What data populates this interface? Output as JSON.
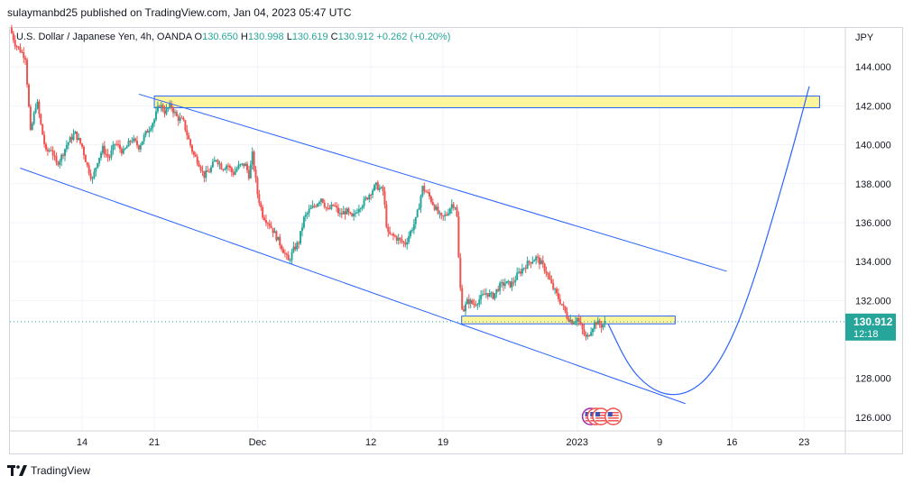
{
  "header": {
    "publisher_line": "sulaymanbd25 published on TradingView.com, Jan 04, 2023 05:47 UTC"
  },
  "legend": {
    "symbol": "U.S. Dollar / Japanese Yen, 4h, OANDA",
    "open_label": "O",
    "open": "130.650",
    "high_label": "H",
    "high": "130.998",
    "low_label": "L",
    "low": "130.619",
    "close_label": "C",
    "close": "130.912",
    "change": "+0.262 (+0.20%)"
  },
  "footer": {
    "brand": "TradingView"
  },
  "colors": {
    "up": "#26a69a",
    "down": "#ef5350",
    "channel": "#2962ff",
    "zone_fill": "#fff59d",
    "price_tag": "#26a69a"
  },
  "chart_data": {
    "type": "candlestick",
    "currency": "JPY",
    "y_range": [
      125.3,
      146.0
    ],
    "y_ticks": [
      "144.000",
      "142.000",
      "140.000",
      "138.000",
      "136.000",
      "134.000",
      "132.000",
      "128.000",
      "126.000"
    ],
    "x_ticks": [
      {
        "label": "14",
        "t": 7
      },
      {
        "label": "21",
        "t": 14
      },
      {
        "label": "Dec",
        "t": 24
      },
      {
        "label": "12",
        "t": 35
      },
      {
        "label": "19",
        "t": 42
      },
      {
        "label": "2023",
        "t": 55
      },
      {
        "label": "9",
        "t": 63
      },
      {
        "label": "16",
        "t": 70
      },
      {
        "label": "23",
        "t": 77
      }
    ],
    "last_price": "130.912",
    "countdown": "12:18",
    "price_path": [
      {
        "t": 0.0,
        "p": 146.0
      },
      {
        "t": 0.5,
        "p": 145.2
      },
      {
        "t": 1.5,
        "p": 144.5
      },
      {
        "t": 2.0,
        "p": 140.6
      },
      {
        "t": 2.6,
        "p": 142.3
      },
      {
        "t": 3.0,
        "p": 141.0
      },
      {
        "t": 3.5,
        "p": 139.6
      },
      {
        "t": 4.0,
        "p": 139.8
      },
      {
        "t": 4.5,
        "p": 139.0
      },
      {
        "t": 5.0,
        "p": 139.4
      },
      {
        "t": 5.5,
        "p": 140.0
      },
      {
        "t": 6.3,
        "p": 140.6
      },
      {
        "t": 7.0,
        "p": 139.9
      },
      {
        "t": 7.5,
        "p": 138.9
      },
      {
        "t": 8.0,
        "p": 138.2
      },
      {
        "t": 8.5,
        "p": 139.2
      },
      {
        "t": 9.0,
        "p": 139.8
      },
      {
        "t": 9.6,
        "p": 139.3
      },
      {
        "t": 10.2,
        "p": 140.1
      },
      {
        "t": 11.0,
        "p": 139.6
      },
      {
        "t": 11.8,
        "p": 140.3
      },
      {
        "t": 12.5,
        "p": 139.9
      },
      {
        "t": 13.2,
        "p": 140.6
      },
      {
        "t": 14.0,
        "p": 141.3
      },
      {
        "t": 14.5,
        "p": 142.1
      },
      {
        "t": 15.0,
        "p": 141.7
      },
      {
        "t": 15.6,
        "p": 142.0
      },
      {
        "t": 16.2,
        "p": 141.4
      },
      {
        "t": 16.8,
        "p": 141.2
      },
      {
        "t": 17.3,
        "p": 140.3
      },
      {
        "t": 17.8,
        "p": 139.5
      },
      {
        "t": 18.3,
        "p": 139.1
      },
      {
        "t": 18.8,
        "p": 138.4
      },
      {
        "t": 19.4,
        "p": 138.7
      },
      {
        "t": 20.0,
        "p": 139.3
      },
      {
        "t": 20.6,
        "p": 138.8
      },
      {
        "t": 21.1,
        "p": 139.0
      },
      {
        "t": 21.6,
        "p": 138.5
      },
      {
        "t": 22.2,
        "p": 138.9
      },
      {
        "t": 22.8,
        "p": 139.0
      },
      {
        "t": 23.2,
        "p": 138.4
      },
      {
        "t": 23.5,
        "p": 139.5
      },
      {
        "t": 24.0,
        "p": 137.5
      },
      {
        "t": 24.5,
        "p": 136.4
      },
      {
        "t": 25.2,
        "p": 135.9
      },
      {
        "t": 25.8,
        "p": 135.3
      },
      {
        "t": 26.4,
        "p": 134.7
      },
      {
        "t": 27.0,
        "p": 134.0
      },
      {
        "t": 27.5,
        "p": 134.6
      },
      {
        "t": 28.0,
        "p": 135.0
      },
      {
        "t": 28.5,
        "p": 136.2
      },
      {
        "t": 29.0,
        "p": 136.6
      },
      {
        "t": 29.6,
        "p": 136.9
      },
      {
        "t": 30.2,
        "p": 137.3
      },
      {
        "t": 30.8,
        "p": 136.6
      },
      {
        "t": 31.4,
        "p": 136.9
      },
      {
        "t": 32.0,
        "p": 136.4
      },
      {
        "t": 32.6,
        "p": 136.6
      },
      {
        "t": 33.2,
        "p": 136.2
      },
      {
        "t": 33.8,
        "p": 136.8
      },
      {
        "t": 34.4,
        "p": 137.1
      },
      {
        "t": 35.0,
        "p": 137.6
      },
      {
        "t": 35.5,
        "p": 137.9
      },
      {
        "t": 36.2,
        "p": 137.6
      },
      {
        "t": 36.6,
        "p": 135.4
      },
      {
        "t": 37.2,
        "p": 135.3
      },
      {
        "t": 37.8,
        "p": 135.1
      },
      {
        "t": 38.3,
        "p": 134.9
      },
      {
        "t": 38.9,
        "p": 135.6
      },
      {
        "t": 39.4,
        "p": 136.2
      },
      {
        "t": 40.0,
        "p": 137.8
      },
      {
        "t": 40.6,
        "p": 137.4
      },
      {
        "t": 41.2,
        "p": 136.8
      },
      {
        "t": 41.8,
        "p": 136.2
      },
      {
        "t": 42.3,
        "p": 136.4
      },
      {
        "t": 42.9,
        "p": 137.0
      },
      {
        "t": 43.3,
        "p": 136.8
      },
      {
        "t": 43.6,
        "p": 133.0
      },
      {
        "t": 43.9,
        "p": 131.4
      },
      {
        "t": 44.4,
        "p": 132.0
      },
      {
        "t": 45.0,
        "p": 131.8
      },
      {
        "t": 45.6,
        "p": 132.1
      },
      {
        "t": 46.2,
        "p": 132.4
      },
      {
        "t": 46.8,
        "p": 132.2
      },
      {
        "t": 47.4,
        "p": 132.7
      },
      {
        "t": 48.0,
        "p": 132.9
      },
      {
        "t": 48.6,
        "p": 132.8
      },
      {
        "t": 49.2,
        "p": 133.3
      },
      {
        "t": 49.8,
        "p": 133.7
      },
      {
        "t": 50.4,
        "p": 134.0
      },
      {
        "t": 51.0,
        "p": 134.2
      },
      {
        "t": 51.5,
        "p": 133.9
      },
      {
        "t": 52.0,
        "p": 133.5
      },
      {
        "t": 52.5,
        "p": 132.8
      },
      {
        "t": 53.0,
        "p": 132.3
      },
      {
        "t": 53.5,
        "p": 131.8
      },
      {
        "t": 54.0,
        "p": 131.2
      },
      {
        "t": 54.5,
        "p": 130.9
      },
      {
        "t": 55.0,
        "p": 131.1
      },
      {
        "t": 55.4,
        "p": 130.6
      },
      {
        "t": 55.9,
        "p": 130.0
      },
      {
        "t": 56.4,
        "p": 130.6
      },
      {
        "t": 56.8,
        "p": 130.9
      },
      {
        "t": 57.3,
        "p": 130.7
      },
      {
        "t": 57.8,
        "p": 130.9
      }
    ],
    "channel_upper": [
      {
        "t": 12.5,
        "p": 142.6
      },
      {
        "t": 69.5,
        "p": 133.5
      }
    ],
    "channel_lower": [
      {
        "t": 1.0,
        "p": 138.8
      },
      {
        "t": 65.5,
        "p": 126.7
      }
    ],
    "resistance_zone": {
      "t1": 14.0,
      "t2": 78.5,
      "p_low": 141.9,
      "p_high": 142.5
    },
    "support_zone": {
      "t1": 43.8,
      "t2": 64.5,
      "p_low": 130.8,
      "p_high": 131.2
    },
    "projection": [
      {
        "t": 58.0,
        "p": 130.8
      },
      {
        "t": 60.0,
        "p": 128.6
      },
      {
        "t": 62.0,
        "p": 127.5
      },
      {
        "t": 64.0,
        "p": 127.1
      },
      {
        "t": 66.0,
        "p": 127.3
      },
      {
        "t": 68.0,
        "p": 128.2
      },
      {
        "t": 70.0,
        "p": 130.0
      },
      {
        "t": 72.0,
        "p": 132.8
      },
      {
        "t": 74.0,
        "p": 136.3
      },
      {
        "t": 76.0,
        "p": 140.0
      },
      {
        "t": 77.5,
        "p": 143.0
      }
    ],
    "event_markers": [
      56.3,
      56.8,
      57.3,
      58.5
    ]
  }
}
